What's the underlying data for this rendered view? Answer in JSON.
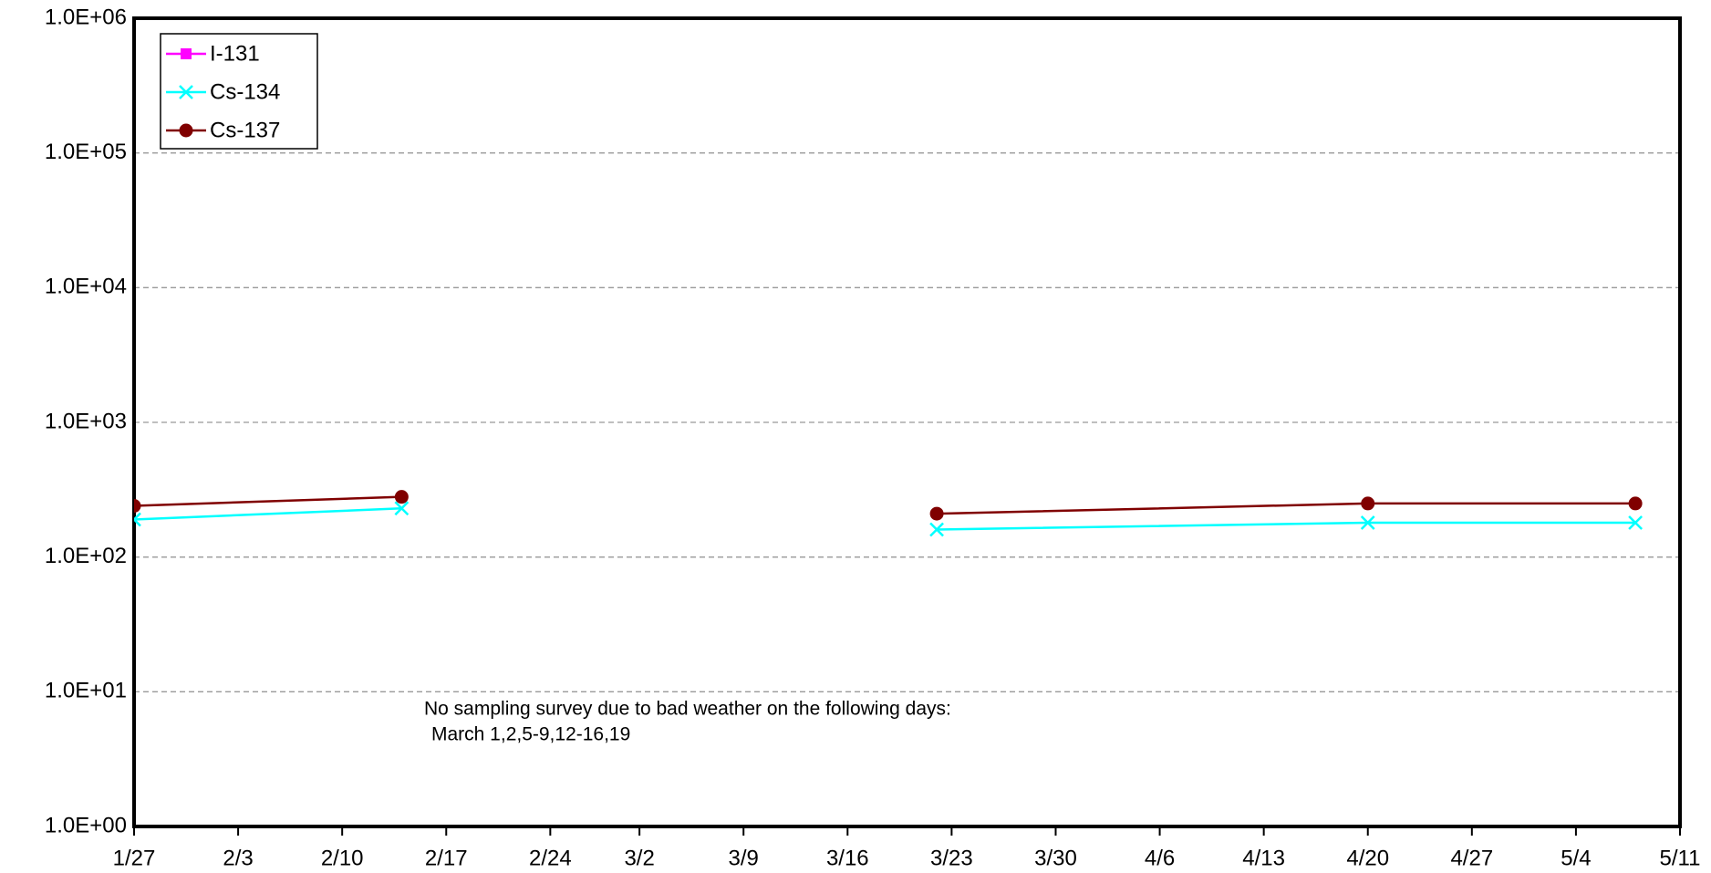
{
  "chart_data": {
    "type": "line",
    "log_scale": true,
    "grid": true,
    "legend": "upper left",
    "x": [
      "1/27",
      "2/14",
      null,
      "3/22",
      "4/20",
      "5/8"
    ],
    "xlim": [
      "1/27",
      "5/11"
    ],
    "xticks": [
      "1/27",
      "2/3",
      "2/10",
      "2/17",
      "2/24",
      "3/2",
      "3/9",
      "3/16",
      "3/23",
      "3/30",
      "4/6",
      "4/13",
      "4/20",
      "4/27",
      "5/4",
      "5/11"
    ],
    "ylim": [
      1,
      1000000
    ],
    "yticks": [
      {
        "value": 1,
        "label": "1.0E+00"
      },
      {
        "value": 10,
        "label": "1.0E+01"
      },
      {
        "value": 100,
        "label": "1.0E+02"
      },
      {
        "value": 1000,
        "label": "1.0E+03"
      },
      {
        "value": 10000,
        "label": "1.0E+04"
      },
      {
        "value": 100000,
        "label": "1.0E+05"
      },
      {
        "value": 1000000,
        "label": "1.0E+06"
      }
    ],
    "series": [
      {
        "name": "I-131",
        "color": "#ff00ff",
        "marker": "square",
        "values": [
          null,
          null,
          null,
          null,
          null,
          null
        ]
      },
      {
        "name": "Cs-134",
        "color": "#00ffff",
        "marker": "x",
        "values": [
          190,
          230,
          null,
          160,
          180,
          180
        ]
      },
      {
        "name": "Cs-137",
        "color": "#800000",
        "marker": "circle",
        "values": [
          240,
          280,
          null,
          210,
          250,
          250
        ]
      }
    ],
    "annotations": [
      "No sampling survey due to bad weather on the following days:",
      "March 1,2,5-9,12-16,19"
    ]
  }
}
